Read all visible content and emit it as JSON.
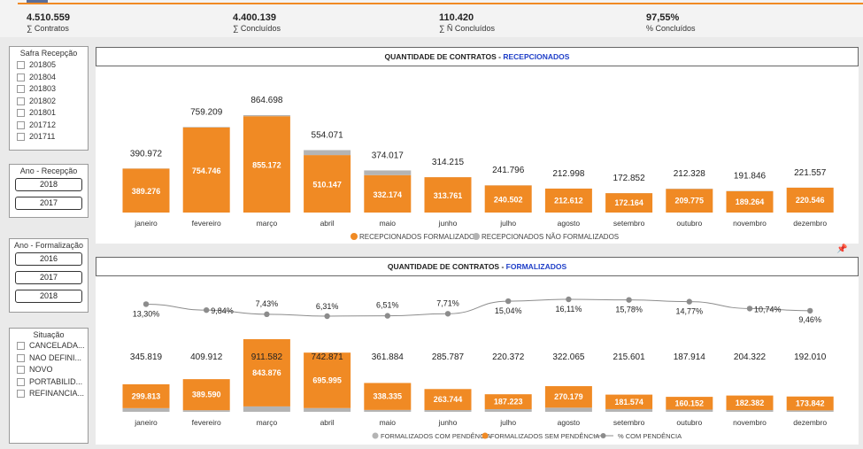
{
  "kpis": [
    {
      "value": "4.510.559",
      "label": "∑ Contratos"
    },
    {
      "value": "4.400.139",
      "label": "∑ Concluídos"
    },
    {
      "value": "110.420",
      "label": "∑ Ñ Concluídos"
    },
    {
      "value": "97,55%",
      "label": "% Concluídos"
    }
  ],
  "slicers": {
    "safra": {
      "title": "Safra Recepção",
      "items": [
        "201805",
        "201804",
        "201803",
        "201802",
        "201801",
        "201712",
        "201711"
      ]
    },
    "ano_recepcao": {
      "title": "Ano - Recepção",
      "items": [
        "2018",
        "2017"
      ]
    },
    "ano_formalizacao": {
      "title": "Ano - Formalização",
      "items": [
        "2016",
        "2017",
        "2018"
      ]
    },
    "situacao": {
      "title": "Situação",
      "items": [
        "CANCELADA...",
        "NAO DEFINI...",
        "NOVO",
        "PORTABILID...",
        "REFINANCIA..."
      ]
    }
  },
  "colors": {
    "orange": "#f08a24",
    "gray": "#b4b4b4",
    "title_highlight": "#1f3fc8"
  },
  "chart_data": [
    {
      "type": "bar",
      "title_prefix": "QUANTIDADE DE CONTRATOS - ",
      "title_highlight": "RECEPCIONADOS",
      "categories": [
        "janeiro",
        "fevereiro",
        "março",
        "abril",
        "maio",
        "junho",
        "julho",
        "agosto",
        "setembro",
        "outubro",
        "novembro",
        "dezembro"
      ],
      "series": [
        {
          "name": "RECEPCIONADOS FORMALIZADOS",
          "values": [
            389276,
            754746,
            855172,
            510147,
            332174,
            313761,
            240502,
            212612,
            172164,
            209775,
            189264,
            220546
          ],
          "labels": [
            "389.276",
            "754.746",
            "855.172",
            "510.147",
            "332.174",
            "313.761",
            "240.502",
            "212.612",
            "172.164",
            "209.775",
            "189.264",
            "220.546"
          ]
        },
        {
          "name": "RECEPCIONADOS NÃO FORMALIZADOS",
          "values": [
            1696,
            4463,
            9526,
            43924,
            41843,
            454,
            1294,
            386,
            688,
            2553,
            2582,
            1011
          ]
        }
      ],
      "totals": [
        390972,
        759209,
        864698,
        554071,
        374017,
        314215,
        241796,
        212998,
        172852,
        212328,
        191846,
        221557
      ],
      "total_labels": [
        "390.972",
        "759.209",
        "864.698",
        "554.071",
        "374.017",
        "314.215",
        "241.796",
        "212.998",
        "172.852",
        "212.328",
        "191.846",
        "221.557"
      ],
      "legend_position": "bottom"
    },
    {
      "type": "bar",
      "title_prefix": "QUANTIDADE DE CONTRATOS - ",
      "title_highlight": "FORMALIZADOS",
      "categories": [
        "janeiro",
        "fevereiro",
        "março",
        "abril",
        "maio",
        "junho",
        "julho",
        "agosto",
        "setembro",
        "outubro",
        "novembro",
        "dezembro"
      ],
      "series": [
        {
          "name": "FORMALIZADOS COM PENDÊNCIA",
          "values": [
            46006,
            20322,
            67706,
            46876,
            23549,
            22043,
            33149,
            51886,
            34027,
            27762,
            21940,
            18168
          ]
        },
        {
          "name": "FORMALIZADOS SEM PENDÊNCIA",
          "values": [
            299813,
            389590,
            843876,
            695995,
            338335,
            263744,
            187223,
            270179,
            181574,
            160152,
            182382,
            173842
          ],
          "labels": [
            "299.813",
            "389.590",
            "843.876",
            "695.995",
            "338.335",
            "263.744",
            "187.223",
            "270.179",
            "181.574",
            "160.152",
            "182.382",
            "173.842"
          ]
        },
        {
          "name": "% COM PENDÊNCIA",
          "values": [
            13.3,
            9.84,
            7.43,
            6.31,
            6.51,
            7.71,
            15.04,
            16.11,
            15.78,
            14.77,
            10.74,
            9.46
          ],
          "labels": [
            "13,30%",
            "9,84%",
            "7,43%",
            "6,31%",
            "6,51%",
            "7,71%",
            "15,04%",
            "16,11%",
            "15,78%",
            "14,77%",
            "10,74%",
            "9,46%"
          ]
        }
      ],
      "totals": [
        345819,
        409912,
        911582,
        742871,
        361884,
        285787,
        220372,
        322065,
        215601,
        187914,
        204322,
        192010
      ],
      "total_labels": [
        "345.819",
        "409.912",
        "911.582",
        "742.871",
        "361.884",
        "285.787",
        "220.372",
        "322.065",
        "215.601",
        "187.914",
        "204.322",
        "192.010"
      ],
      "legend_position": "bottom"
    }
  ]
}
